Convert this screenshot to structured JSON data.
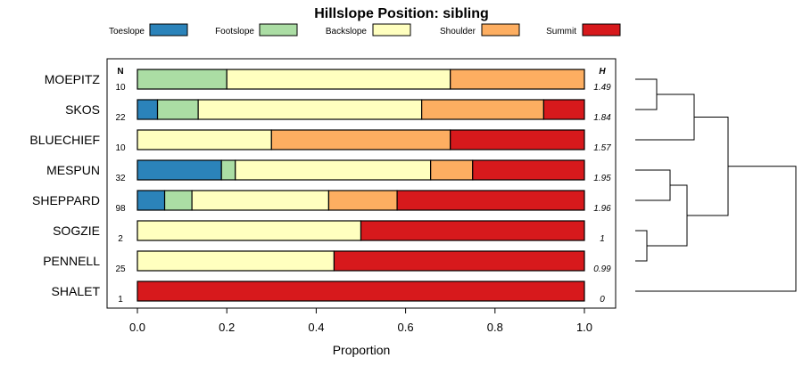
{
  "chart_data": {
    "type": "bar",
    "stacked": true,
    "orientation": "horizontal",
    "title": "Hillslope Position: sibling",
    "xlabel": "Proportion",
    "ylabel": "",
    "xlim": [
      0,
      1
    ],
    "x_ticks": [
      0,
      0.2,
      0.4,
      0.6,
      0.8,
      1
    ],
    "x_tick_labels": [
      "0.0",
      "0.2",
      "0.4",
      "0.6",
      "0.8",
      "1.0"
    ],
    "n_header": "N",
    "h_header": "H",
    "legend": [
      {
        "name": "Toeslope",
        "color": "#2b83ba"
      },
      {
        "name": "Footslope",
        "color": "#abdda4"
      },
      {
        "name": "Backslope",
        "color": "#ffffbf"
      },
      {
        "name": "Shoulder",
        "color": "#fdae61"
      },
      {
        "name": "Summit",
        "color": "#d7191c"
      }
    ],
    "rows": [
      {
        "label": "MOEPITZ",
        "n": "10",
        "h": "1.49",
        "values": [
          0,
          0.2,
          0.5,
          0.3,
          0
        ]
      },
      {
        "label": "SKOS",
        "n": "22",
        "h": "1.84",
        "values": [
          0.045,
          0.091,
          0.5,
          0.273,
          0.091
        ]
      },
      {
        "label": "BLUECHIEF",
        "n": "10",
        "h": "1.57",
        "values": [
          0,
          0,
          0.3,
          0.4,
          0.3
        ]
      },
      {
        "label": "MESPUN",
        "n": "32",
        "h": "1.95",
        "values": [
          0.188,
          0.031,
          0.437,
          0.094,
          0.25
        ]
      },
      {
        "label": "SHEPPARD",
        "n": "98",
        "h": "1.96",
        "values": [
          0.061,
          0.061,
          0.306,
          0.153,
          0.419
        ]
      },
      {
        "label": "SOGZIE",
        "n": "2",
        "h": "1",
        "values": [
          0,
          0,
          0.5,
          0,
          0.5
        ]
      },
      {
        "label": "PENNELL",
        "n": "25",
        "h": "0.99",
        "values": [
          0,
          0,
          0.44,
          0,
          0.56
        ]
      },
      {
        "label": "SHALET",
        "n": "1",
        "h": "0",
        "values": [
          0,
          0,
          0,
          0,
          1
        ]
      }
    ]
  }
}
